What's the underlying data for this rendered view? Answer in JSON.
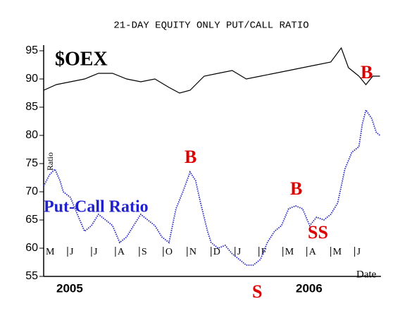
{
  "chart_data": {
    "type": "line",
    "title": "21-DAY EQUITY ONLY PUT/CALL RATIO",
    "x_label": "Date",
    "xlim": [
      0,
      14.1
    ],
    "xticks": [
      {
        "value": 0,
        "label": "M"
      },
      {
        "value": 1,
        "label": "J"
      },
      {
        "value": 2,
        "label": "J"
      },
      {
        "value": 3,
        "label": "A"
      },
      {
        "value": 4,
        "label": "S"
      },
      {
        "value": 5,
        "label": "O"
      },
      {
        "value": 6,
        "label": "N"
      },
      {
        "value": 7,
        "label": "D"
      },
      {
        "value": 8,
        "label": "J"
      },
      {
        "value": 9,
        "label": "F"
      },
      {
        "value": 10,
        "label": "M"
      },
      {
        "value": 11,
        "label": "A"
      },
      {
        "value": 12,
        "label": "M"
      },
      {
        "value": 13,
        "label": "J"
      }
    ],
    "years": [
      "2005",
      "2006"
    ],
    "ylim": [
      55,
      96
    ],
    "yticks": [
      55,
      60,
      65,
      70,
      75,
      80,
      85,
      90,
      95
    ],
    "annotations": [
      "$OEX",
      "Put-Call Ratio",
      "Ratio",
      "B",
      "B",
      "B",
      "SS",
      "S"
    ],
    "series": [
      {
        "name": "$OEX",
        "color": "#000000",
        "x": [
          0,
          0.53,
          1.12,
          1.71,
          2.29,
          2.88,
          3.47,
          4.06,
          4.65,
          5.24,
          5.68,
          6.12,
          6.71,
          7.29,
          7.88,
          8.47,
          9.06,
          9.65,
          10.24,
          10.82,
          11.41,
          12,
          12.44,
          12.74,
          13.18,
          13.47,
          13.76,
          14.06
        ],
        "values": [
          88,
          89,
          89.5,
          90,
          91,
          91,
          90,
          89.5,
          90,
          88.5,
          87.5,
          88,
          90.5,
          91,
          91.5,
          90,
          90.5,
          91,
          91.5,
          92,
          92.5,
          93,
          95.5,
          92,
          90.5,
          89,
          90.5,
          90.5
        ]
      },
      {
        "name": "Put-Call Ratio",
        "color": "#2020c0",
        "x": [
          0,
          0.24,
          0.47,
          0.68,
          0.82,
          1.12,
          1.41,
          1.71,
          2,
          2.29,
          2.59,
          2.88,
          3.18,
          3.47,
          3.76,
          4.06,
          4.35,
          4.65,
          4.94,
          5.24,
          5.53,
          5.82,
          6.12,
          6.35,
          6.56,
          6.85,
          7,
          7.29,
          7.59,
          7.88,
          8.18,
          8.47,
          8.76,
          9.06,
          9.35,
          9.65,
          9.94,
          10.24,
          10.53,
          10.82,
          11.12,
          11.41,
          11.71,
          12,
          12.29,
          12.59,
          12.88,
          13.18,
          13.32,
          13.47,
          13.71,
          13.91,
          14.06
        ],
        "values": [
          71,
          73,
          74,
          72,
          70,
          69,
          66,
          63,
          64,
          66,
          65,
          64,
          61,
          62,
          64,
          66,
          65,
          64,
          62,
          61,
          67,
          70,
          73.5,
          72,
          68,
          63,
          61,
          60,
          60.5,
          59,
          58,
          57,
          57,
          58,
          61,
          63,
          64,
          67,
          67.5,
          67,
          64,
          65.5,
          65,
          66,
          68,
          74,
          77,
          78,
          82,
          84.5,
          83,
          80.5,
          80
        ]
      }
    ]
  }
}
